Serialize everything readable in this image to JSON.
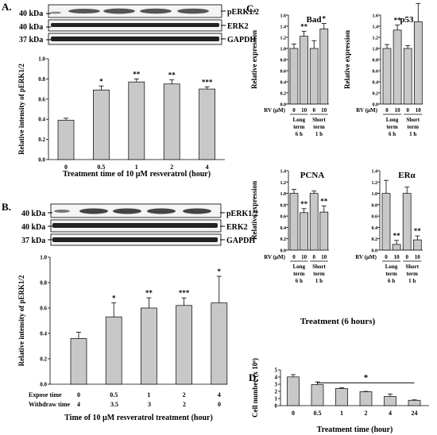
{
  "panels": {
    "A": {
      "label": "A.",
      "blot": {
        "markers_left": [
          "40 kDa",
          "40 kDa",
          "37 kDa"
        ],
        "proteins_right": [
          "pERK1/2",
          "ERK2",
          "GAPDH"
        ]
      }
    },
    "B": {
      "label": "B.",
      "blot": {
        "markers_left": [
          "40 kDa",
          "40 kDa",
          "37 kDa"
        ],
        "proteins_right": [
          "pERK1/2",
          "ERK2",
          "GAPDH"
        ]
      },
      "row_labels": [
        "Expose time",
        "Withdraw time"
      ],
      "withdraw_values": [
        "4",
        "3.5",
        "3",
        "2",
        "0"
      ]
    },
    "C": {
      "label": "C.",
      "xlabel": "Treatment (6 hours)",
      "row_rv": "RV (µM)",
      "group_labels": [
        [
          "Long",
          "term",
          "6 h"
        ],
        [
          "Short",
          "term",
          "1 h"
        ]
      ]
    },
    "D": {
      "label": "D."
    }
  },
  "chart_data": [
    {
      "id": "A",
      "type": "bar",
      "categories": [
        "0",
        "0.5",
        "1",
        "2",
        "4"
      ],
      "values": [
        0.39,
        0.69,
        0.77,
        0.75,
        0.7
      ],
      "errors": [
        0.02,
        0.04,
        0.03,
        0.04,
        0.02
      ],
      "sig": [
        "",
        "*",
        "**",
        "**",
        "***"
      ],
      "xlabel": "Treatment time of 10 µM resveratrol (hour)",
      "ylabel": "Relative intensity of pERK1/2",
      "ylim": [
        0,
        1.0
      ],
      "yticks": [
        "0.0",
        "0.2",
        "0.4",
        "0.6",
        "0.8",
        "1.0"
      ],
      "color": "#c8c8c8"
    },
    {
      "id": "B",
      "type": "bar",
      "categories": [
        "0",
        "0.5",
        "1",
        "2",
        "4"
      ],
      "values": [
        0.36,
        0.53,
        0.6,
        0.62,
        0.64
      ],
      "errors": [
        0.05,
        0.11,
        0.08,
        0.06,
        0.21
      ],
      "sig": [
        "",
        "*",
        "**",
        "***",
        "*"
      ],
      "xlabel": "Time of 10 µM resveratrol treatment (hour)",
      "ylabel": "Relative intensity of pERK1/2",
      "ylim": [
        0,
        1.0
      ],
      "yticks": [
        "0.0",
        "0.2",
        "0.4",
        "0.6",
        "0.8",
        "1.0"
      ],
      "color": "#c8c8c8"
    },
    {
      "id": "C-Bad",
      "type": "bar",
      "title": "Bad",
      "categories": [
        "0",
        "10",
        "0",
        "10"
      ],
      "values": [
        1.0,
        1.22,
        1.0,
        1.35
      ],
      "errors": [
        0.08,
        0.09,
        0.14,
        0.1
      ],
      "sig": [
        "",
        "**",
        "",
        "*"
      ],
      "ylabel": "Relative expression",
      "ylim": [
        0,
        1.6
      ],
      "yticks": [
        "0.0",
        "0.2",
        "0.4",
        "0.6",
        "0.8",
        "1.0",
        "1.2",
        "1.4",
        "1.6"
      ],
      "color": "#c8c8c8"
    },
    {
      "id": "C-p53",
      "type": "bar",
      "title": "p53",
      "categories": [
        "0",
        "10",
        "0",
        "10"
      ],
      "values": [
        1.0,
        1.33,
        1.0,
        1.48
      ],
      "errors": [
        0.07,
        0.09,
        0.05,
        0.33
      ],
      "sig": [
        "",
        "**",
        "",
        "*"
      ],
      "ylabel": "Relative expression",
      "ylim": [
        0,
        1.6
      ],
      "yticks": [
        "0.0",
        "0.2",
        "0.4",
        "0.6",
        "0.8",
        "1.0",
        "1.2",
        "1.4",
        "1.6"
      ],
      "color": "#c8c8c8"
    },
    {
      "id": "C-PCNA",
      "type": "bar",
      "title": "PCNA",
      "categories": [
        "0",
        "10",
        "0",
        "10"
      ],
      "values": [
        1.0,
        0.66,
        1.0,
        0.67
      ],
      "errors": [
        0.07,
        0.07,
        0.04,
        0.11
      ],
      "sig": [
        "",
        "**",
        "",
        "**"
      ],
      "ylabel": "Relative expression",
      "ylim": [
        0,
        1.4
      ],
      "yticks": [
        "0.0",
        "0.2",
        "0.4",
        "0.6",
        "0.8",
        "1.0",
        "1.2",
        "1.4"
      ],
      "color": "#c8c8c8"
    },
    {
      "id": "C-ERa",
      "type": "bar",
      "title": "ERα",
      "categories": [
        "0",
        "10",
        "0",
        "10"
      ],
      "values": [
        1.0,
        0.1,
        1.0,
        0.18
      ],
      "errors": [
        0.23,
        0.07,
        0.11,
        0.07
      ],
      "sig": [
        "",
        "**",
        "",
        "**"
      ],
      "ylabel": "",
      "ylim": [
        0,
        1.4
      ],
      "yticks": [
        "0.0",
        "0.2",
        "0.4",
        "0.6",
        "0.8",
        "1.0",
        "1.2",
        "1.4"
      ],
      "color": "#c8c8c8"
    },
    {
      "id": "D",
      "type": "bar",
      "categories": [
        "0",
        "0.5",
        "1",
        "2",
        "4",
        "24"
      ],
      "values": [
        4.02,
        2.94,
        2.4,
        1.95,
        1.28,
        0.75
      ],
      "errors": [
        0.32,
        0.38,
        0.1,
        0.05,
        0.35,
        0.06
      ],
      "xlabel": "Treatment time (hour)",
      "ylabel": "Cell number (x 10⁶)",
      "ylim": [
        0,
        5
      ],
      "yticks": [
        "0",
        "1",
        "2",
        "3",
        "4",
        "5"
      ],
      "significance": "*",
      "color": "#c8c8c8"
    }
  ]
}
